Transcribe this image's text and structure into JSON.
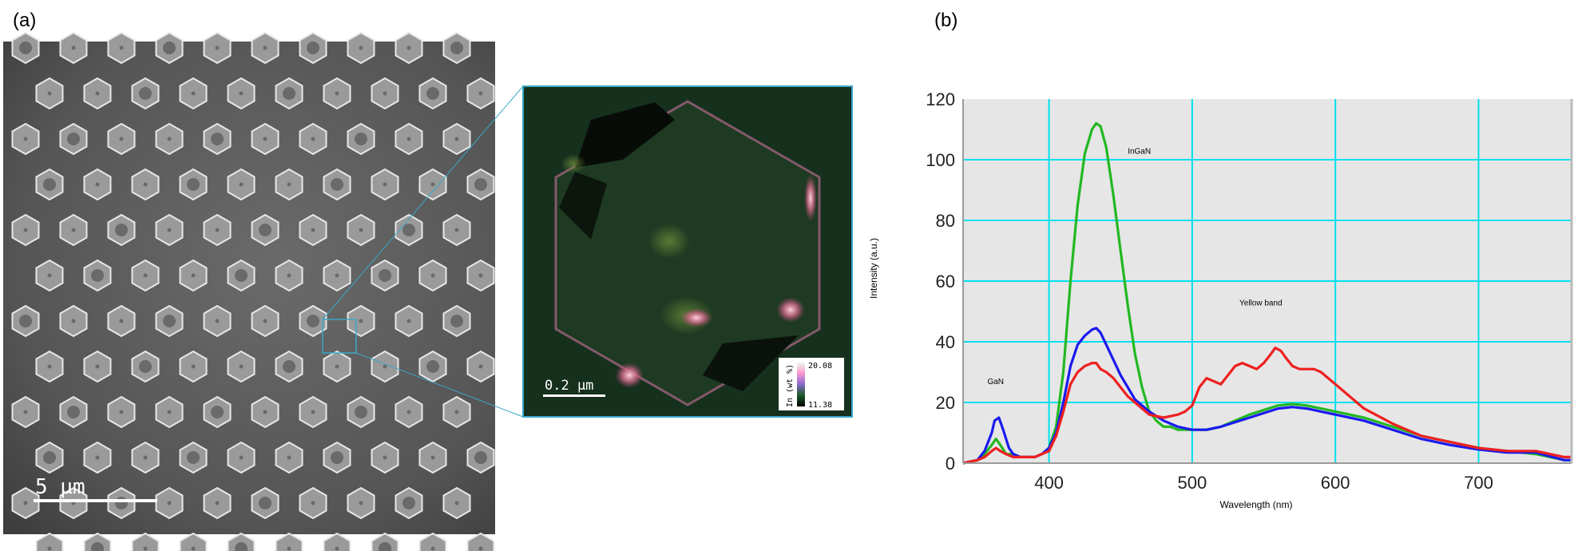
{
  "panels": {
    "a_label": "(a)",
    "b_label": "(b)"
  },
  "sem": {
    "scale_bar_label": "5 µm"
  },
  "map": {
    "scale_bar_label": "0.2 µm",
    "colorbar": {
      "label": "In (wt %)",
      "max": "20.08",
      "min": "11.38"
    }
  },
  "colors": {
    "green": "#22b822",
    "blue": "#1a1aee",
    "red": "#ee2020",
    "plot_bg": "#e6e6e6",
    "grid": "#00e0ee"
  },
  "chart_data": {
    "type": "line",
    "xlabel": "Wavelength (nm)",
    "ylabel": "Intensity (a.u.)",
    "xlim": [
      340,
      765
    ],
    "ylim": [
      0,
      120
    ],
    "x_ticks": [
      400,
      500,
      600,
      700
    ],
    "y_ticks": [
      0,
      20,
      40,
      60,
      80,
      100,
      120
    ],
    "grid": true,
    "annotations": [
      {
        "text": "InGaN",
        "x": 455,
        "y": 102
      },
      {
        "text": "Yellow band",
        "x": 533,
        "y": 52
      },
      {
        "text": "GaN",
        "x": 357,
        "y": 26
      }
    ],
    "series": [
      {
        "color": "#22b822",
        "x": [
          340,
          350,
          355,
          360,
          363,
          366,
          370,
          375,
          380,
          385,
          390,
          395,
          400,
          405,
          410,
          415,
          420,
          425,
          430,
          433,
          436,
          440,
          445,
          450,
          455,
          460,
          465,
          470,
          475,
          480,
          485,
          490,
          495,
          500,
          510,
          520,
          540,
          560,
          570,
          580,
          600,
          620,
          640,
          660,
          680,
          700,
          720,
          740,
          760,
          765
        ],
        "y": [
          0,
          1,
          3,
          6,
          8,
          6,
          3,
          3,
          2,
          2,
          2,
          3,
          5,
          12,
          30,
          60,
          85,
          102,
          110,
          112,
          111,
          104,
          88,
          70,
          52,
          36,
          25,
          17,
          14,
          12,
          12,
          11,
          11,
          11,
          11,
          12,
          16,
          19,
          19.5,
          19,
          17,
          15,
          12,
          9,
          7,
          5,
          4,
          3,
          1,
          1
        ]
      },
      {
        "color": "#1a1aee",
        "x": [
          340,
          350,
          355,
          360,
          362,
          365,
          368,
          372,
          375,
          380,
          385,
          390,
          395,
          400,
          405,
          410,
          415,
          420,
          425,
          430,
          433,
          436,
          440,
          445,
          450,
          455,
          460,
          470,
          480,
          490,
          500,
          510,
          520,
          540,
          560,
          570,
          580,
          600,
          620,
          640,
          660,
          680,
          700,
          720,
          740,
          760,
          765
        ],
        "y": [
          0,
          1,
          4,
          10,
          14,
          15,
          11,
          5,
          3,
          2,
          2,
          2,
          3,
          5,
          10,
          20,
          32,
          39,
          42,
          44,
          44.5,
          43,
          39,
          34,
          29,
          25,
          21,
          17,
          14,
          12,
          11,
          11,
          12,
          15,
          18,
          18.5,
          18,
          16,
          14,
          11,
          8,
          6,
          4.5,
          3.5,
          3.5,
          1,
          1
        ]
      },
      {
        "color": "#ee2020",
        "x": [
          340,
          350,
          355,
          360,
          363,
          366,
          370,
          375,
          380,
          385,
          390,
          395,
          400,
          405,
          410,
          415,
          420,
          425,
          430,
          433,
          436,
          440,
          445,
          450,
          455,
          460,
          470,
          480,
          490,
          495,
          500,
          505,
          510,
          515,
          520,
          525,
          530,
          535,
          540,
          545,
          550,
          555,
          558,
          562,
          565,
          570,
          575,
          580,
          585,
          590,
          595,
          600,
          610,
          620,
          640,
          660,
          680,
          700,
          720,
          740,
          760,
          765
        ],
        "y": [
          0,
          1,
          2,
          4,
          5,
          4,
          3,
          2,
          2,
          2,
          2,
          3,
          4,
          9,
          17,
          26,
          30,
          32,
          33,
          33,
          31,
          30,
          28,
          25,
          22,
          20,
          16,
          15,
          16,
          17,
          19,
          25,
          28,
          27,
          26,
          29,
          32,
          33,
          32,
          31,
          33,
          36,
          38,
          37,
          35,
          32,
          31,
          31,
          31,
          30,
          28,
          26,
          22,
          18,
          13,
          9,
          7,
          5,
          4,
          4,
          2,
          2
        ]
      }
    ]
  }
}
